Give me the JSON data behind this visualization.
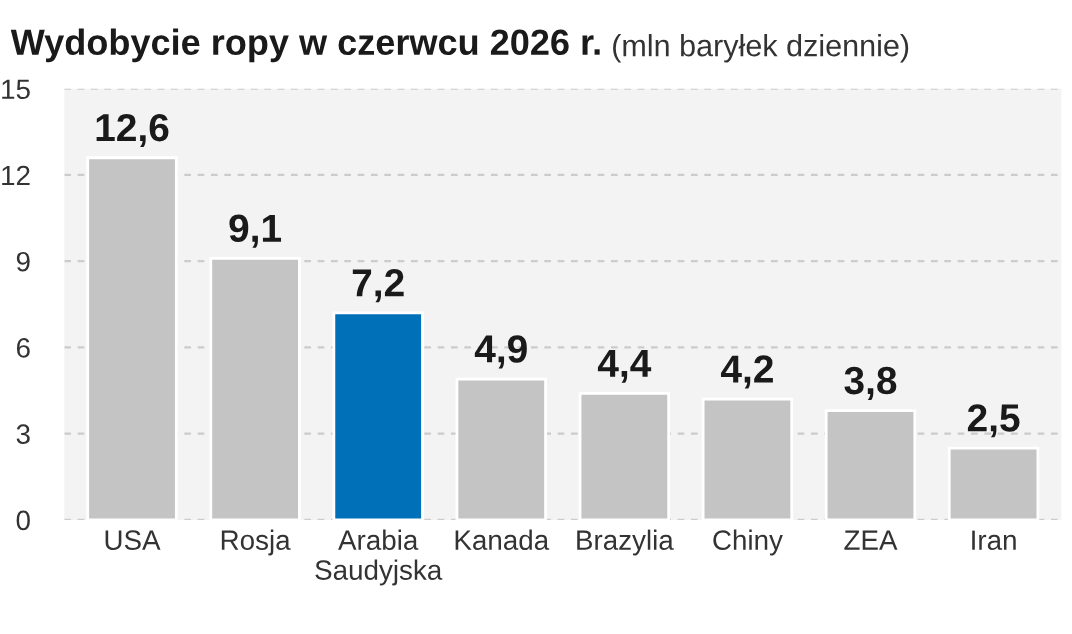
{
  "chart_data": {
    "type": "bar",
    "title": "Wydobycie ropy w czerwcu 2026 r.",
    "subtitle": "(mln baryłek dziennie)",
    "categories": [
      "USA",
      "Rosja",
      "Arabia\nSaudyjska",
      "Kanada",
      "Brazylia",
      "Chiny",
      "ZEA",
      "Iran"
    ],
    "values": [
      12.6,
      9.1,
      7.2,
      4.9,
      4.4,
      4.2,
      3.8,
      2.5
    ],
    "colors": [
      "#c4c4c4",
      "#c4c4c4",
      "#0070b8",
      "#c4c4c4",
      "#c4c4c4",
      "#c4c4c4",
      "#c4c4c4",
      "#c4c4c4"
    ],
    "value_labels": [
      "12,6",
      "9,1",
      "7,2",
      "4,9",
      "4,4",
      "4,2",
      "3,8",
      "2,5"
    ],
    "ylim": [
      0,
      15
    ],
    "yticks": [
      0,
      3,
      6,
      9,
      12,
      15
    ],
    "grid": "y",
    "legend": false
  }
}
